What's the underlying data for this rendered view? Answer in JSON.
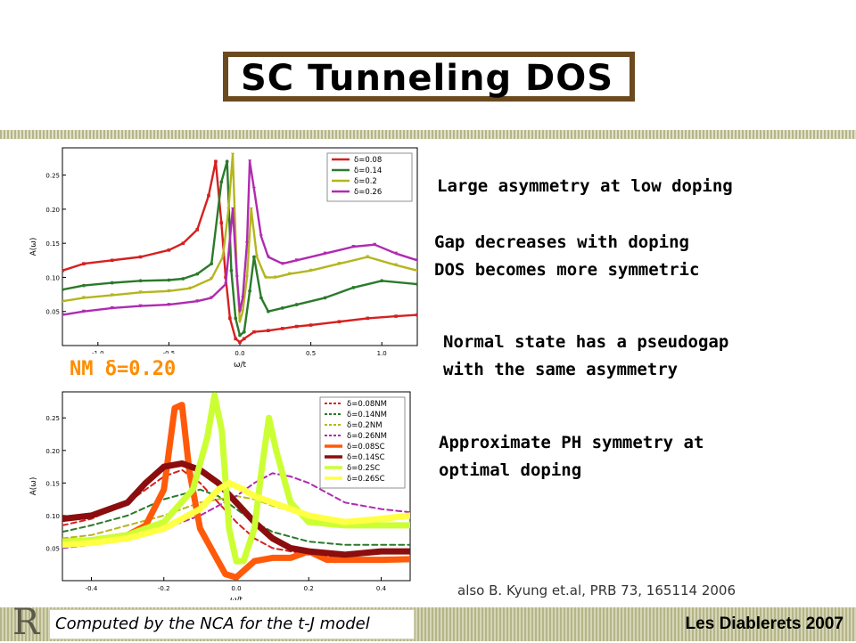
{
  "title": "SC Tunneling DOS",
  "notes": [
    "Large asymmetry at low doping",
    "Gap decreases with doping",
    "DOS becomes more symmetric",
    "Normal state has a pseudogap",
    "with the same asymmetry",
    "Approximate PH symmetry at",
    "optimal doping"
  ],
  "reference": "also  B. Kyung et.al, PRB 73, 165114 2006",
  "nm_label": "NM δ=0.20",
  "footer": {
    "left": "Computed by the NCA for the t-J model",
    "right": "Les Diablerets 2007"
  },
  "colors": {
    "red": "#d62020",
    "green": "#2b7a2b",
    "olive": "#b5b51e",
    "purple": "#b02ab0",
    "orange": "#ff5a0a",
    "darkred": "#8b0d0d",
    "lime": "#ccff33",
    "yellow": "#ffff44",
    "frame": "#6b4a1f"
  },
  "chart_data": [
    {
      "type": "line",
      "xlabel": "ω/t",
      "ylabel": "A(ω)",
      "xlim": [
        -1.25,
        1.25
      ],
      "ylim": [
        0,
        0.29
      ],
      "xticks": [
        "-1.0",
        "-0.5",
        "0.0",
        "0.5",
        "1.0"
      ],
      "xtick_values": [
        -1.0,
        -0.5,
        0.0,
        0.5,
        1.0
      ],
      "yticks": [
        "0.05",
        "0.10",
        "0.15",
        "0.20",
        "0.25"
      ],
      "ytick_values": [
        0.05,
        0.1,
        0.15,
        0.2,
        0.25
      ],
      "legend_position": "top-right",
      "series": [
        {
          "name": "δ=0.08",
          "color": "#d62020",
          "marker": "square",
          "dash": "",
          "x": [
            -1.25,
            -1.1,
            -0.9,
            -0.7,
            -0.5,
            -0.4,
            -0.3,
            -0.22,
            -0.17,
            -0.13,
            -0.1,
            -0.07,
            -0.03,
            0.0,
            0.03,
            0.1,
            0.2,
            0.3,
            0.4,
            0.5,
            0.7,
            0.9,
            1.1,
            1.25
          ],
          "y": [
            0.11,
            0.12,
            0.125,
            0.13,
            0.14,
            0.15,
            0.17,
            0.22,
            0.27,
            0.18,
            0.1,
            0.04,
            0.01,
            0.005,
            0.01,
            0.02,
            0.022,
            0.025,
            0.028,
            0.03,
            0.035,
            0.04,
            0.043,
            0.045
          ]
        },
        {
          "name": "δ=0.14",
          "color": "#2b7a2b",
          "marker": "circle",
          "dash": "",
          "x": [
            -1.25,
            -1.1,
            -0.9,
            -0.7,
            -0.5,
            -0.4,
            -0.3,
            -0.2,
            -0.13,
            -0.09,
            -0.06,
            -0.03,
            0.0,
            0.03,
            0.07,
            0.1,
            0.15,
            0.2,
            0.3,
            0.4,
            0.6,
            0.8,
            1.0,
            1.25
          ],
          "y": [
            0.082,
            0.088,
            0.092,
            0.095,
            0.096,
            0.098,
            0.105,
            0.12,
            0.24,
            0.27,
            0.11,
            0.04,
            0.015,
            0.02,
            0.08,
            0.13,
            0.07,
            0.05,
            0.055,
            0.06,
            0.07,
            0.085,
            0.095,
            0.09
          ]
        },
        {
          "name": "δ=0.2",
          "color": "#b5b51e",
          "marker": "triangle",
          "dash": "",
          "x": [
            -1.25,
            -1.1,
            -0.9,
            -0.7,
            -0.5,
            -0.35,
            -0.2,
            -0.12,
            -0.08,
            -0.05,
            -0.02,
            0.0,
            0.02,
            0.05,
            0.08,
            0.12,
            0.18,
            0.25,
            0.35,
            0.5,
            0.7,
            0.9,
            1.1,
            1.25
          ],
          "y": [
            0.065,
            0.07,
            0.074,
            0.078,
            0.08,
            0.084,
            0.098,
            0.13,
            0.2,
            0.28,
            0.1,
            0.035,
            0.05,
            0.1,
            0.2,
            0.13,
            0.1,
            0.1,
            0.105,
            0.11,
            0.12,
            0.13,
            0.118,
            0.11
          ]
        },
        {
          "name": "δ=0.26",
          "color": "#b02ab0",
          "marker": "triangle",
          "dash": "",
          "x": [
            -1.25,
            -1.1,
            -0.9,
            -0.7,
            -0.5,
            -0.3,
            -0.2,
            -0.1,
            -0.05,
            -0.02,
            0.0,
            0.02,
            0.05,
            0.07,
            0.1,
            0.15,
            0.2,
            0.3,
            0.4,
            0.6,
            0.8,
            0.95,
            1.1,
            1.25
          ],
          "y": [
            0.045,
            0.05,
            0.055,
            0.058,
            0.06,
            0.065,
            0.07,
            0.09,
            0.2,
            0.1,
            0.05,
            0.07,
            0.15,
            0.27,
            0.23,
            0.16,
            0.13,
            0.12,
            0.125,
            0.135,
            0.145,
            0.148,
            0.135,
            0.125
          ]
        }
      ]
    },
    {
      "type": "line",
      "xlabel": "ω/t",
      "ylabel": "A(ω)",
      "xlim": [
        -0.48,
        0.48
      ],
      "ylim": [
        0,
        0.29
      ],
      "xticks": [
        "-0.4",
        "-0.2",
        "0.0",
        "0.2",
        "0.4"
      ],
      "xtick_values": [
        -0.4,
        -0.2,
        0.0,
        0.2,
        0.4
      ],
      "yticks": [
        "0.05",
        "0.10",
        "0.15",
        "0.20",
        "0.25"
      ],
      "ytick_values": [
        0.05,
        0.1,
        0.15,
        0.2,
        0.25
      ],
      "legend_position": "top-right",
      "series": [
        {
          "name": "δ=0.08NM",
          "color": "#d62020",
          "width": 2,
          "dash": "6,4",
          "x": [
            -0.48,
            -0.4,
            -0.3,
            -0.25,
            -0.2,
            -0.15,
            -0.1,
            -0.05,
            0.0,
            0.05,
            0.1,
            0.2,
            0.3,
            0.4,
            0.48
          ],
          "y": [
            0.085,
            0.095,
            0.12,
            0.14,
            0.16,
            0.17,
            0.15,
            0.12,
            0.09,
            0.065,
            0.05,
            0.04,
            0.035,
            0.035,
            0.035
          ]
        },
        {
          "name": "δ=0.14NM",
          "color": "#2b7a2b",
          "width": 2,
          "dash": "6,4",
          "x": [
            -0.48,
            -0.4,
            -0.3,
            -0.2,
            -0.1,
            -0.05,
            0.0,
            0.05,
            0.1,
            0.2,
            0.3,
            0.4,
            0.48
          ],
          "y": [
            0.075,
            0.085,
            0.1,
            0.125,
            0.14,
            0.13,
            0.11,
            0.09,
            0.075,
            0.06,
            0.055,
            0.055,
            0.055
          ]
        },
        {
          "name": "δ=0.2NM",
          "color": "#b5b51e",
          "width": 2,
          "dash": "6,4",
          "x": [
            -0.48,
            -0.4,
            -0.3,
            -0.2,
            -0.1,
            0.0,
            0.05,
            0.1,
            0.2,
            0.3,
            0.4,
            0.48
          ],
          "y": [
            0.065,
            0.07,
            0.085,
            0.1,
            0.12,
            0.13,
            0.125,
            0.115,
            0.1,
            0.09,
            0.085,
            0.085
          ]
        },
        {
          "name": "δ=0.26NM",
          "color": "#b02ab0",
          "width": 2,
          "dash": "6,4",
          "x": [
            -0.48,
            -0.4,
            -0.3,
            -0.2,
            -0.1,
            0.0,
            0.05,
            0.1,
            0.15,
            0.2,
            0.3,
            0.4,
            0.48
          ],
          "y": [
            0.05,
            0.055,
            0.065,
            0.08,
            0.1,
            0.13,
            0.15,
            0.165,
            0.16,
            0.15,
            0.12,
            0.11,
            0.105
          ]
        },
        {
          "name": "δ=0.08SC",
          "color": "#ff5a0a",
          "width": 7,
          "dash": "",
          "x": [
            -0.48,
            -0.4,
            -0.3,
            -0.25,
            -0.2,
            -0.17,
            -0.15,
            -0.13,
            -0.1,
            -0.06,
            -0.03,
            0.0,
            0.02,
            0.05,
            0.1,
            0.15,
            0.2,
            0.25,
            0.3,
            0.4,
            0.48
          ],
          "y": [
            0.06,
            0.062,
            0.07,
            0.085,
            0.14,
            0.265,
            0.27,
            0.17,
            0.08,
            0.04,
            0.01,
            0.005,
            0.015,
            0.03,
            0.035,
            0.035,
            0.045,
            0.032,
            0.032,
            0.032,
            0.033
          ]
        },
        {
          "name": "δ=0.14SC",
          "color": "#8b0d0d",
          "width": 7,
          "dash": "",
          "x": [
            -0.48,
            -0.4,
            -0.3,
            -0.25,
            -0.2,
            -0.15,
            -0.1,
            -0.05,
            0.0,
            0.05,
            0.1,
            0.15,
            0.2,
            0.3,
            0.4,
            0.48
          ],
          "y": [
            0.095,
            0.1,
            0.12,
            0.15,
            0.175,
            0.18,
            0.17,
            0.15,
            0.12,
            0.09,
            0.065,
            0.05,
            0.045,
            0.04,
            0.045,
            0.045
          ]
        },
        {
          "name": "δ=0.2SC",
          "color": "#ccff33",
          "width": 7,
          "dash": "",
          "x": [
            -0.48,
            -0.4,
            -0.3,
            -0.2,
            -0.12,
            -0.08,
            -0.06,
            -0.04,
            -0.02,
            0.0,
            0.02,
            0.05,
            0.07,
            0.09,
            0.11,
            0.15,
            0.2,
            0.3,
            0.4,
            0.48
          ],
          "y": [
            0.06,
            0.062,
            0.07,
            0.09,
            0.14,
            0.22,
            0.285,
            0.23,
            0.08,
            0.03,
            0.03,
            0.08,
            0.17,
            0.25,
            0.2,
            0.12,
            0.09,
            0.085,
            0.085,
            0.085
          ]
        },
        {
          "name": "δ=0.26SC",
          "color": "#ffff44",
          "width": 7,
          "dash": "",
          "x": [
            -0.48,
            -0.4,
            -0.3,
            -0.2,
            -0.1,
            -0.05,
            -0.02,
            0.0,
            0.02,
            0.05,
            0.1,
            0.15,
            0.2,
            0.3,
            0.4,
            0.48
          ],
          "y": [
            0.055,
            0.058,
            0.065,
            0.08,
            0.11,
            0.14,
            0.15,
            0.145,
            0.14,
            0.13,
            0.12,
            0.11,
            0.1,
            0.09,
            0.095,
            0.1
          ]
        }
      ]
    }
  ]
}
